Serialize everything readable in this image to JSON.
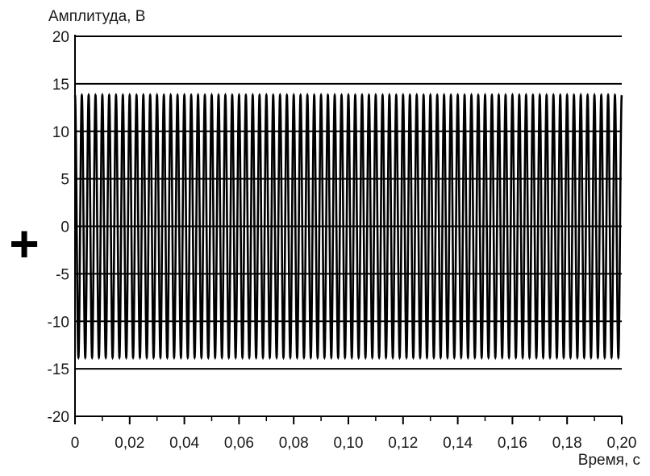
{
  "chart_data": {
    "type": "line",
    "title": "",
    "xlabel": "Время, с",
    "ylabel": "Амплитуда, В",
    "xlim": [
      0,
      0.2
    ],
    "ylim": [
      -20,
      20
    ],
    "x_ticks": [
      "0",
      "0,02",
      "0,04",
      "0,06",
      "0,08",
      "0,10",
      "0,12",
      "0,14",
      "0,16",
      "0,18",
      "0,20"
    ],
    "y_ticks": [
      "20",
      "15",
      "10",
      "5",
      "0",
      "-5",
      "-10",
      "-15",
      "-20"
    ],
    "grid": true,
    "series": [
      {
        "signal": "sine",
        "amplitude": 13.8,
        "frequency_hz": 400,
        "x_start": 0,
        "x_end": 0.2,
        "color": "#000000"
      }
    ]
  },
  "annotations": {
    "marker_symbol": "+"
  }
}
